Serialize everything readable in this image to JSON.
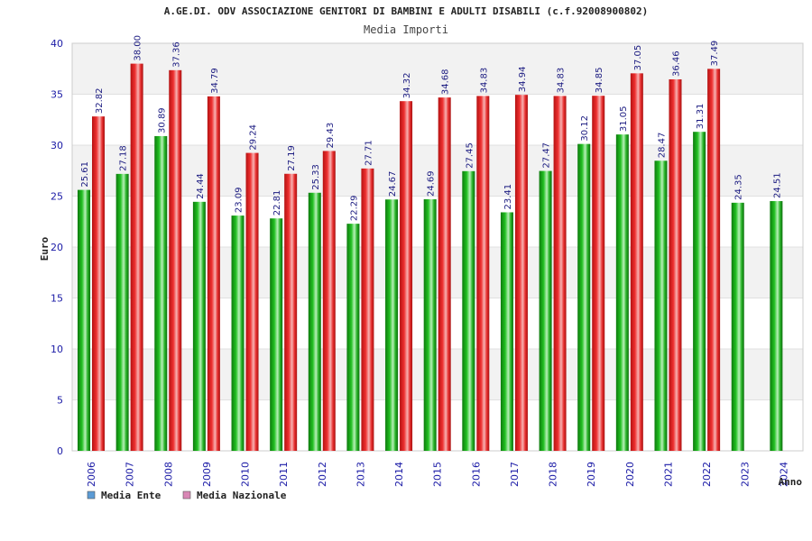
{
  "chart_data": {
    "type": "bar",
    "title": "A.GE.DI. ODV ASSOCIAZIONE GENITORI DI BAMBINI E ADULTI DISABILI (c.f.92008900802)",
    "subtitle": "Media Importi",
    "xlabel": "Anno",
    "ylabel": "Euro",
    "ylim": [
      0,
      40
    ],
    "yticks": [
      0,
      5,
      10,
      15,
      20,
      25,
      30,
      35,
      40
    ],
    "grid": "horizontal bands",
    "legend_position": "bottom-left",
    "categories": [
      "2006",
      "2007",
      "2008",
      "2009",
      "2010",
      "2011",
      "2012",
      "2013",
      "2014",
      "2015",
      "2016",
      "2017",
      "2018",
      "2019",
      "2020",
      "2021",
      "2022",
      "2023",
      "2024"
    ],
    "series": [
      {
        "name": "Media Ente",
        "color": "#22aa22",
        "legend_color": "#5b9bd5",
        "values": [
          25.61,
          27.18,
          30.89,
          24.44,
          23.09,
          22.81,
          25.33,
          22.29,
          24.67,
          24.69,
          27.45,
          23.41,
          27.47,
          30.12,
          31.05,
          28.47,
          31.31,
          24.35,
          24.51
        ],
        "labels": [
          "25.61",
          "27.18",
          "30.89",
          "24.44",
          "23.09",
          "22.81",
          "25.33",
          "22.29",
          "24.67",
          "24.69",
          "27.45",
          "23.41",
          "27.47",
          "30.12",
          "31.05",
          "28.47",
          "31.31",
          "24.35",
          "24.51"
        ]
      },
      {
        "name": "Media Nazionale",
        "color": "#ee3333",
        "legend_color": "#d987b5",
        "values": [
          32.82,
          38.0,
          37.36,
          34.79,
          29.24,
          27.19,
          29.43,
          27.71,
          34.32,
          34.68,
          34.83,
          34.94,
          34.83,
          34.85,
          37.05,
          36.46,
          37.49,
          null,
          null
        ],
        "labels": [
          "32.82",
          "38.00",
          "37.36",
          "34.79",
          "29.24",
          "27.19",
          "29.43",
          "27.71",
          "34.32",
          "34.68",
          "34.83",
          "34.94",
          "34.83",
          "34.85",
          "37.05",
          "36.46",
          "37.49",
          null,
          null
        ]
      }
    ]
  }
}
